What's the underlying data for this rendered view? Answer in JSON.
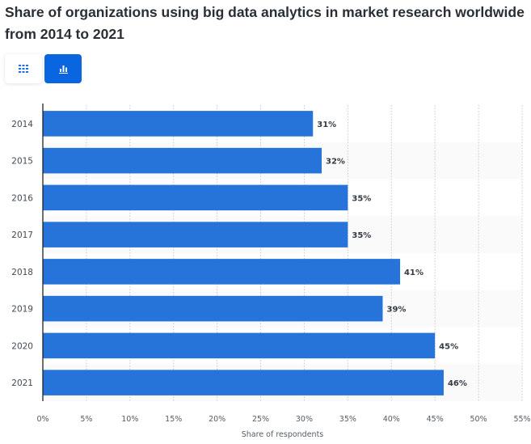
{
  "header": {
    "title": "Share of organizations using big data analytics in market research worldwide from 2014 to 2021"
  },
  "view_toggle": {
    "options": [
      {
        "name": "table-view",
        "icon": "grid-icon",
        "active": false
      },
      {
        "name": "chart-view",
        "icon": "bar-chart-icon",
        "active": true
      }
    ],
    "active_color": "#0a66e0"
  },
  "chart_data": {
    "type": "bar",
    "orientation": "horizontal",
    "title": "Share of organizations using big data analytics in market research worldwide from 2014 to 2021",
    "categories": [
      "2014",
      "2015",
      "2016",
      "2017",
      "2018",
      "2019",
      "2020",
      "2021"
    ],
    "values": [
      31,
      32,
      35,
      35,
      41,
      39,
      45,
      46
    ],
    "data_labels": [
      "31%",
      "32%",
      "35%",
      "35%",
      "41%",
      "39%",
      "45%",
      "46%"
    ],
    "xlabel": "Share of respondents",
    "ylabel": "",
    "xlim": [
      0,
      55
    ],
    "x_ticks": [
      0,
      5,
      10,
      15,
      20,
      25,
      30,
      35,
      40,
      45,
      50,
      55
    ],
    "x_tick_labels": [
      "0%",
      "5%",
      "10%",
      "15%",
      "20%",
      "25%",
      "30%",
      "35%",
      "40%",
      "45%",
      "50%",
      "55%"
    ],
    "grid": true,
    "legend": "none",
    "bar_color": "#2673d9"
  }
}
